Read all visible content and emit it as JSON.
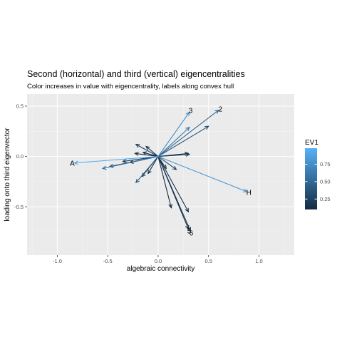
{
  "chart_data": {
    "type": "vector-arrows",
    "title": "Second (horizontal) and third (vertical) eigencentralities",
    "subtitle": "Color increases in value with eigencentrality, labels along convex hull",
    "xlabel": "algebraic connectivity",
    "ylabel": "loading onto third eigenvector",
    "xlim": [
      -1.3,
      1.35
    ],
    "ylim": [
      -0.98,
      0.62
    ],
    "x_ticks": [
      -1.0,
      -0.5,
      0.0,
      0.5,
      1.0
    ],
    "x_tick_labels": [
      "-1.0",
      "-0.5",
      "0.0",
      "0.5",
      "1.0"
    ],
    "y_ticks": [
      -0.5,
      0.0,
      0.5
    ],
    "y_tick_labels": [
      "-0.5",
      "0.0",
      "0.5"
    ],
    "grid": true,
    "origin": [
      0,
      0
    ],
    "color_low": "#132b43",
    "color_high": "#56b1f7",
    "vectors": [
      {
        "x": -0.83,
        "y": -0.065,
        "ev1": 0.95,
        "label": "A"
      },
      {
        "x": 0.88,
        "y": -0.35,
        "ev1": 0.82,
        "label": "H"
      },
      {
        "x": 0.31,
        "y": 0.44,
        "ev1": 0.72,
        "label": "3"
      },
      {
        "x": 0.6,
        "y": 0.46,
        "ev1": 0.5,
        "label": "2"
      },
      {
        "x": 0.32,
        "y": -0.74,
        "ev1": 0.2,
        "label": "6"
      },
      {
        "x": 0.3,
        "y": -0.72,
        "ev1": 0.12,
        "label": "5"
      },
      {
        "x": 0.3,
        "y": -0.55,
        "ev1": 0.15,
        "label": ""
      },
      {
        "x": 0.13,
        "y": -0.51,
        "ev1": 0.1,
        "label": ""
      },
      {
        "x": -0.55,
        "y": -0.12,
        "ev1": 0.55,
        "label": ""
      },
      {
        "x": -0.48,
        "y": -0.1,
        "ev1": 0.35,
        "label": ""
      },
      {
        "x": -0.35,
        "y": -0.05,
        "ev1": 0.15,
        "label": ""
      },
      {
        "x": -0.28,
        "y": -0.06,
        "ev1": 0.1,
        "label": ""
      },
      {
        "x": -0.22,
        "y": 0.12,
        "ev1": 0.2,
        "label": ""
      },
      {
        "x": -0.12,
        "y": 0.1,
        "ev1": 0.18,
        "label": ""
      },
      {
        "x": -0.23,
        "y": 0.03,
        "ev1": 0.12,
        "label": ""
      },
      {
        "x": -0.15,
        "y": 0.04,
        "ev1": 0.1,
        "label": ""
      },
      {
        "x": -0.22,
        "y": -0.26,
        "ev1": 0.45,
        "label": ""
      },
      {
        "x": -0.16,
        "y": -0.2,
        "ev1": 0.25,
        "label": ""
      },
      {
        "x": -0.1,
        "y": -0.17,
        "ev1": 0.15,
        "label": ""
      },
      {
        "x": 0.31,
        "y": 0.29,
        "ev1": 0.6,
        "label": ""
      },
      {
        "x": 0.5,
        "y": 0.3,
        "ev1": 0.35,
        "label": ""
      },
      {
        "x": 0.3,
        "y": 0.03,
        "ev1": 0.1,
        "label": ""
      },
      {
        "x": 0.31,
        "y": 0.02,
        "ev1": 0.2,
        "label": ""
      },
      {
        "x": 0.18,
        "y": -0.13,
        "ev1": 0.25,
        "label": ""
      },
      {
        "x": 0.08,
        "y": -0.12,
        "ev1": 0.2,
        "label": ""
      }
    ],
    "legend": {
      "title": "EV1",
      "placement": "right",
      "breaks": [
        0.25,
        0.5,
        0.75
      ],
      "labels": [
        "0.25",
        "0.50",
        "0.75"
      ],
      "range": [
        0.1,
        0.98
      ]
    }
  }
}
